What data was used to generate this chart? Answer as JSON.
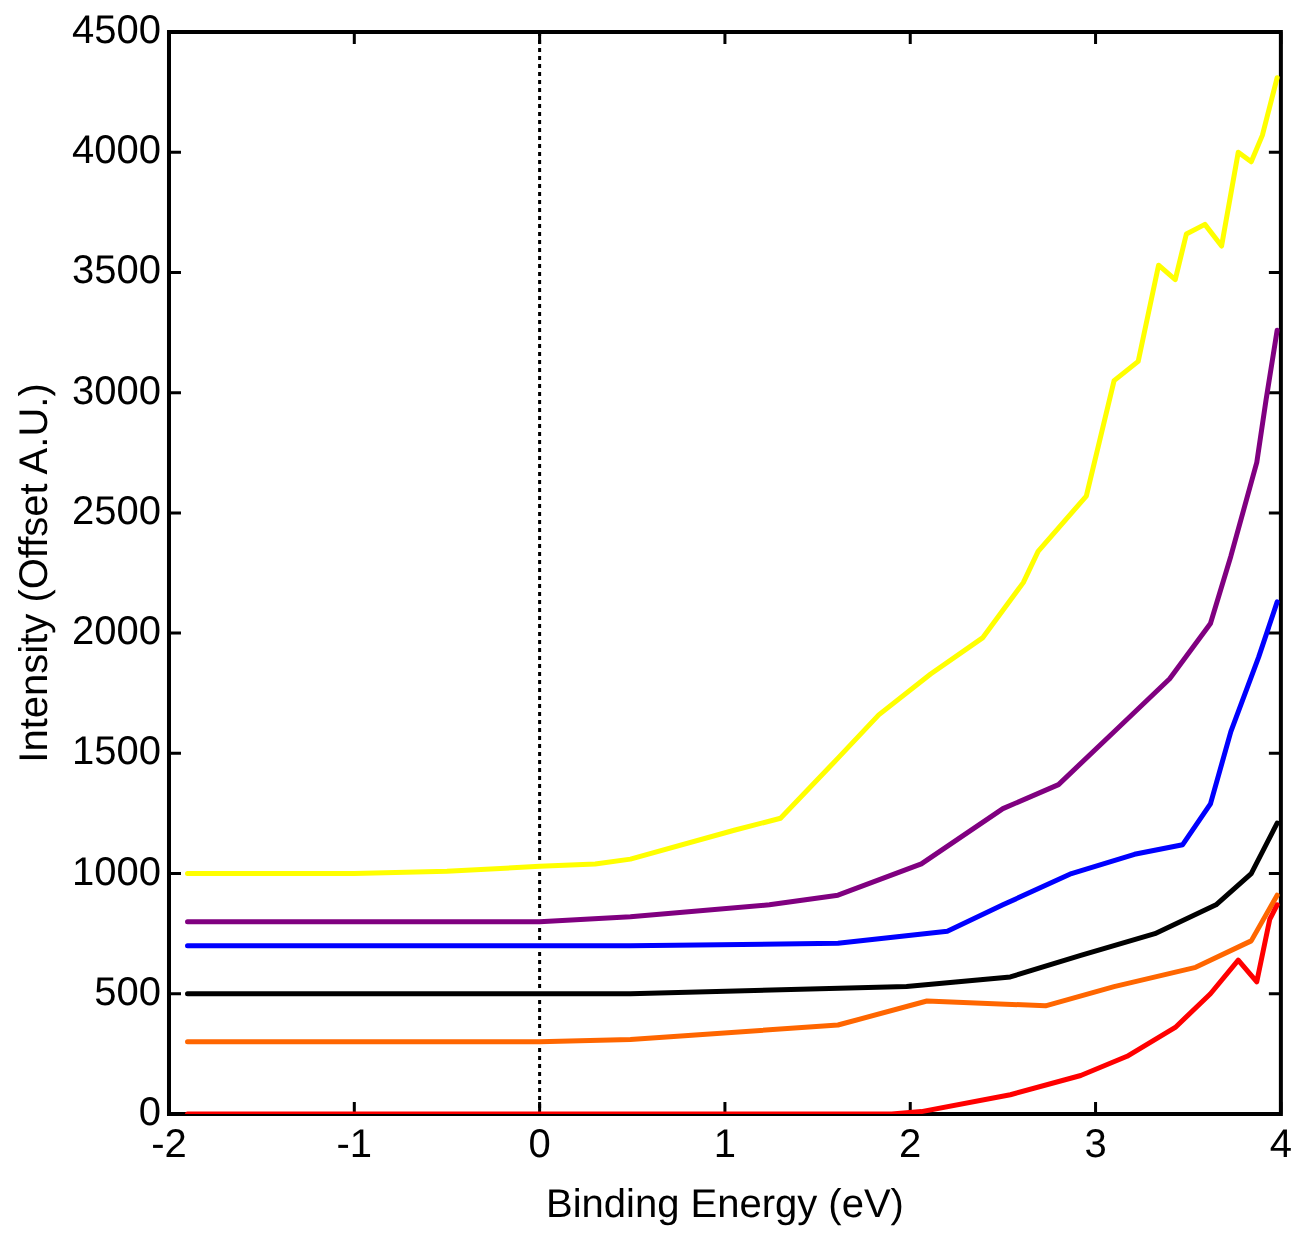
{
  "chart_data": {
    "type": "line",
    "xlabel": "Binding Energy (eV)",
    "ylabel": "Intensity (Offset A.U.)",
    "xlim": [
      -2,
      4
    ],
    "xticks": [
      -2,
      -1,
      0,
      1,
      2,
      3,
      4
    ],
    "ylim": [
      0,
      4500
    ],
    "yticks": [
      0,
      500,
      1000,
      1500,
      2000,
      2500,
      3000,
      3500,
      4000,
      4500
    ],
    "grid": false,
    "legend": false,
    "marker": "none",
    "line_style": "solid",
    "ref_lines": [
      {
        "axis": "x",
        "value": 0,
        "label": null,
        "color": "#000000",
        "line_style": "dotted"
      }
    ],
    "series": [
      {
        "color": "#ffff00",
        "x": [
          -1.9,
          -1,
          -0.5,
          0,
          0.3,
          0.49,
          1.05,
          1.3,
          1.61,
          1.83,
          2.11,
          2.39,
          2.61,
          2.69,
          2.95,
          3.1,
          3.23,
          3.34,
          3.43,
          3.49,
          3.59,
          3.68,
          3.77,
          3.84,
          3.9,
          3.98
        ],
        "values": [
          1000,
          1000,
          1010,
          1030,
          1040,
          1060,
          1180,
          1230,
          1480,
          1660,
          1830,
          1980,
          2210,
          2340,
          2570,
          3050,
          3130,
          3530,
          3470,
          3660,
          3700,
          3610,
          4000,
          3960,
          4070,
          4310
        ]
      },
      {
        "color": "#800080",
        "x": [
          -1.9,
          -1,
          0,
          0.49,
          1.24,
          1.61,
          2.06,
          2.5,
          2.8,
          3.1,
          3.4,
          3.62,
          3.73,
          3.87,
          3.92,
          3.98
        ],
        "values": [
          800,
          800,
          800,
          820,
          870,
          910,
          1040,
          1270,
          1370,
          1590,
          1810,
          2040,
          2320,
          2710,
          2970,
          3260
        ]
      },
      {
        "color": "#0000ff",
        "x": [
          -1.9,
          -1,
          0,
          0.49,
          1.61,
          2.2,
          2.5,
          2.87,
          3.21,
          3.47,
          3.62,
          3.73,
          3.88,
          3.98
        ],
        "values": [
          700,
          700,
          700,
          700,
          710,
          760,
          870,
          1000,
          1080,
          1120,
          1290,
          1590,
          1900,
          2130
        ]
      },
      {
        "color": "#000000",
        "x": [
          -1.9,
          -1,
          0,
          0.49,
          1.98,
          2.54,
          2.92,
          3.32,
          3.65,
          3.84,
          3.98
        ],
        "values": [
          500,
          500,
          500,
          500,
          530,
          570,
          660,
          750,
          870,
          1000,
          1210
        ]
      },
      {
        "color": "#ff6600",
        "x": [
          -1.9,
          -1,
          0,
          0.49,
          1.61,
          2.09,
          2.73,
          3.1,
          3.54,
          3.84,
          3.98
        ],
        "values": [
          300,
          300,
          300,
          310,
          370,
          470,
          450,
          530,
          610,
          720,
          910
        ]
      },
      {
        "color": "#ff0000",
        "x": [
          -1.9,
          -1,
          0,
          1,
          1.9,
          2.06,
          2.54,
          2.92,
          3.17,
          3.43,
          3.62,
          3.77,
          3.87,
          3.94,
          3.98
        ],
        "values": [
          0,
          0,
          0,
          0,
          0,
          10,
          80,
          160,
          240,
          360,
          500,
          640,
          550,
          810,
          870
        ]
      }
    ]
  }
}
